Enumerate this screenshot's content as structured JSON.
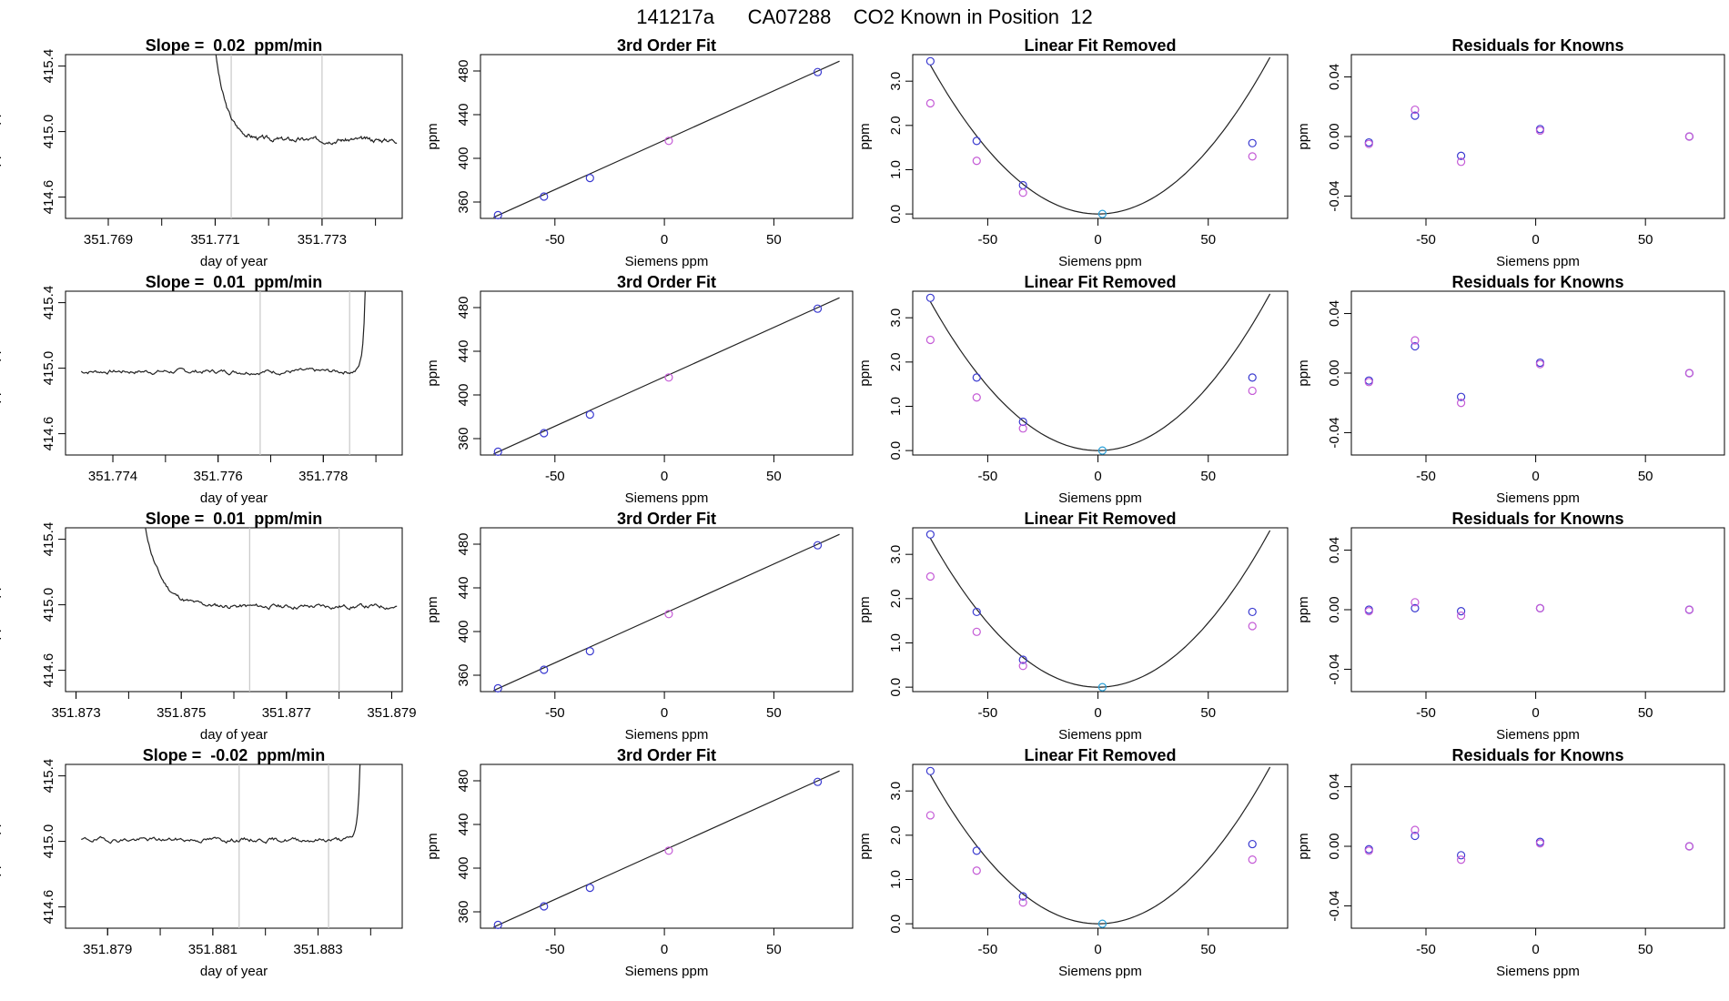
{
  "page_title": "141217a      CA07288    CO2 Known in Position  12",
  "colors": {
    "magenta": "#c45ad6",
    "blue": "#3a3ad0",
    "cyan": "#2aa0d8",
    "vline": "#c8c8c8",
    "line": "#222222"
  },
  "chart_data": [
    {
      "type": "line",
      "title": "Slope =  0.02  ppm/min",
      "xlabel": "day of year",
      "ylabel": "approx. ppm",
      "xlim": [
        351.7682,
        351.7745
      ],
      "ylim": [
        414.47,
        415.47
      ],
      "xticks": [
        "351.769",
        "351.771",
        "351.773"
      ],
      "yticks": [
        "414.6",
        "415.0",
        "415.4"
      ],
      "vlines": [
        351.7713,
        351.773
      ],
      "series": [
        {
          "x_start": 351.771,
          "x_end": 351.7744,
          "baseline": 414.95,
          "start_index": 13,
          "transient": "decay",
          "transient_from": 415.5,
          "noise": 0.012,
          "seed": 3
        }
      ]
    },
    {
      "type": "line",
      "title": "Slope =  0.01  ppm/min",
      "xlabel": "day of year",
      "ylabel": "approx. ppm",
      "xlim": [
        351.7731,
        351.7795
      ],
      "ylim": [
        414.47,
        415.47
      ],
      "xticks": [
        "351.774",
        "351.776",
        "351.778"
      ],
      "yticks": [
        "414.6",
        "415.0",
        "415.4"
      ],
      "vlines": [
        351.7768,
        351.7785
      ],
      "series": [
        {
          "x_start": 351.7734,
          "x_end": 351.7788,
          "baseline": 414.98,
          "start_index": 0,
          "transient": "rise",
          "transient_to": 415.5,
          "noise": 0.012,
          "seed": 7
        }
      ]
    },
    {
      "type": "line",
      "title": "Slope =  0.01  ppm/min",
      "xlabel": "day of year",
      "ylabel": "approx. ppm",
      "xlim": [
        351.8728,
        351.8792
      ],
      "ylim": [
        414.47,
        415.47
      ],
      "xticks": [
        "351.873",
        "351.875",
        "351.877",
        "351.879"
      ],
      "yticks": [
        "414.6",
        "415.0",
        "415.4"
      ],
      "vlines": [
        351.8763,
        351.878
      ],
      "series": [
        {
          "x_start": 351.8743,
          "x_end": 351.8791,
          "baseline": 414.99,
          "start_index": 8,
          "transient": "decay",
          "transient_from": 415.5,
          "noise": 0.012,
          "seed": 11
        }
      ]
    },
    {
      "type": "line",
      "title": "Slope =  -0.02  ppm/min",
      "xlabel": "day of year",
      "ylabel": "approx. ppm",
      "xlim": [
        351.8782,
        351.8846
      ],
      "ylim": [
        414.47,
        415.47
      ],
      "xticks": [
        "351.879",
        "351.881",
        "351.883"
      ],
      "yticks": [
        "414.6",
        "415.0",
        "415.4"
      ],
      "vlines": [
        351.8815,
        351.8832
      ],
      "series": [
        {
          "x_start": 351.8785,
          "x_end": 351.8838,
          "baseline": 415.01,
          "start_index": 0,
          "transient": "rise",
          "transient_to": 415.5,
          "noise": 0.012,
          "seed": 19
        }
      ]
    },
    {
      "type": "scatter",
      "title": "3rd Order Fit",
      "xlabel": "Siemens ppm",
      "ylabel": "ppm",
      "xlim": [
        -84,
        86
      ],
      "ylim": [
        345,
        495
      ],
      "xticks": [
        -50,
        0,
        50
      ],
      "yticks": [
        360,
        400,
        440,
        480
      ],
      "points": [
        {
          "x": -76,
          "y": 348,
          "color": "blue"
        },
        {
          "x": -55,
          "y": 365,
          "color": "blue"
        },
        {
          "x": -34,
          "y": 382,
          "color": "blue"
        },
        {
          "x": 2,
          "y": 416,
          "color": "magenta"
        },
        {
          "x": 70,
          "y": 479,
          "color": "blue"
        }
      ],
      "fit": {
        "x0": -78,
        "y0": 346,
        "x1": 80,
        "y1": 489
      }
    },
    {
      "type": "scatter",
      "title": "3rd Order Fit",
      "xlabel": "Siemens ppm",
      "ylabel": "ppm",
      "xlim": [
        -84,
        86
      ],
      "ylim": [
        345,
        495
      ],
      "xticks": [
        -50,
        0,
        50
      ],
      "yticks": [
        360,
        400,
        440,
        480
      ],
      "points": [
        {
          "x": -76,
          "y": 348,
          "color": "blue"
        },
        {
          "x": -55,
          "y": 365,
          "color": "blue"
        },
        {
          "x": -34,
          "y": 382,
          "color": "blue"
        },
        {
          "x": 2,
          "y": 416,
          "color": "magenta"
        },
        {
          "x": 70,
          "y": 479,
          "color": "blue"
        }
      ],
      "fit": {
        "x0": -78,
        "y0": 346,
        "x1": 80,
        "y1": 489
      }
    },
    {
      "type": "scatter",
      "title": "3rd Order Fit",
      "xlabel": "Siemens ppm",
      "ylabel": "ppm",
      "xlim": [
        -84,
        86
      ],
      "ylim": [
        345,
        495
      ],
      "xticks": [
        -50,
        0,
        50
      ],
      "yticks": [
        360,
        400,
        440,
        480
      ],
      "points": [
        {
          "x": -76,
          "y": 348,
          "color": "blue"
        },
        {
          "x": -55,
          "y": 365,
          "color": "blue"
        },
        {
          "x": -34,
          "y": 382,
          "color": "blue"
        },
        {
          "x": 2,
          "y": 416,
          "color": "magenta"
        },
        {
          "x": 70,
          "y": 479,
          "color": "blue"
        }
      ],
      "fit": {
        "x0": -78,
        "y0": 346,
        "x1": 80,
        "y1": 489
      }
    },
    {
      "type": "scatter",
      "title": "3rd Order Fit",
      "xlabel": "Siemens ppm",
      "ylabel": "ppm",
      "xlim": [
        -84,
        86
      ],
      "ylim": [
        345,
        495
      ],
      "xticks": [
        -50,
        0,
        50
      ],
      "yticks": [
        360,
        400,
        440,
        480
      ],
      "points": [
        {
          "x": -76,
          "y": 348,
          "color": "blue"
        },
        {
          "x": -55,
          "y": 365,
          "color": "blue"
        },
        {
          "x": -34,
          "y": 382,
          "color": "blue"
        },
        {
          "x": 2,
          "y": 416,
          "color": "magenta"
        },
        {
          "x": 70,
          "y": 479,
          "color": "blue"
        }
      ],
      "fit": {
        "x0": -78,
        "y0": 346,
        "x1": 80,
        "y1": 489
      }
    },
    {
      "type": "scatter",
      "title": "Linear Fit Removed",
      "xlabel": "Siemens ppm",
      "ylabel": "ppm",
      "xlim": [
        -84,
        86
      ],
      "ylim": [
        -0.1,
        3.6
      ],
      "xticks": [
        -50,
        0,
        50
      ],
      "yticks": [
        "0.0",
        "1.0",
        "2.0",
        "3.0"
      ],
      "points": [
        {
          "x": -76,
          "y": 3.45,
          "color": "blue"
        },
        {
          "x": -76,
          "y": 2.5,
          "color": "magenta"
        },
        {
          "x": -55,
          "y": 1.65,
          "color": "blue"
        },
        {
          "x": -55,
          "y": 1.2,
          "color": "magenta"
        },
        {
          "x": -34,
          "y": 0.65,
          "color": "blue"
        },
        {
          "x": -34,
          "y": 0.48,
          "color": "magenta"
        },
        {
          "x": 2,
          "y": 0.0,
          "color": "cyan"
        },
        {
          "x": 70,
          "y": 1.6,
          "color": "blue"
        },
        {
          "x": 70,
          "y": 1.3,
          "color": "magenta"
        }
      ],
      "curve": {
        "vertex_x": 0,
        "a": 0.000582,
        "x_from": -76,
        "x_to": 78
      }
    },
    {
      "type": "scatter",
      "title": "Linear Fit Removed",
      "xlabel": "Siemens ppm",
      "ylabel": "ppm",
      "xlim": [
        -84,
        86
      ],
      "ylim": [
        -0.1,
        3.6
      ],
      "xticks": [
        -50,
        0,
        50
      ],
      "yticks": [
        "0.0",
        "1.0",
        "2.0",
        "3.0"
      ],
      "points": [
        {
          "x": -76,
          "y": 3.45,
          "color": "blue"
        },
        {
          "x": -76,
          "y": 2.5,
          "color": "magenta"
        },
        {
          "x": -55,
          "y": 1.65,
          "color": "blue"
        },
        {
          "x": -55,
          "y": 1.2,
          "color": "magenta"
        },
        {
          "x": -34,
          "y": 0.65,
          "color": "blue"
        },
        {
          "x": -34,
          "y": 0.5,
          "color": "magenta"
        },
        {
          "x": 2,
          "y": 0.0,
          "color": "cyan"
        },
        {
          "x": 70,
          "y": 1.65,
          "color": "blue"
        },
        {
          "x": 70,
          "y": 1.35,
          "color": "magenta"
        }
      ],
      "curve": {
        "vertex_x": 0,
        "a": 0.000582,
        "x_from": -76,
        "x_to": 78
      }
    },
    {
      "type": "scatter",
      "title": "Linear Fit Removed",
      "xlabel": "Siemens ppm",
      "ylabel": "ppm",
      "xlim": [
        -84,
        86
      ],
      "ylim": [
        -0.1,
        3.6
      ],
      "xticks": [
        -50,
        0,
        50
      ],
      "yticks": [
        "0.0",
        "1.0",
        "2.0",
        "3.0"
      ],
      "points": [
        {
          "x": -76,
          "y": 3.45,
          "color": "blue"
        },
        {
          "x": -76,
          "y": 2.5,
          "color": "magenta"
        },
        {
          "x": -55,
          "y": 1.7,
          "color": "blue"
        },
        {
          "x": -55,
          "y": 1.25,
          "color": "magenta"
        },
        {
          "x": -34,
          "y": 0.62,
          "color": "blue"
        },
        {
          "x": -34,
          "y": 0.48,
          "color": "magenta"
        },
        {
          "x": 2,
          "y": 0.0,
          "color": "cyan"
        },
        {
          "x": 70,
          "y": 1.7,
          "color": "blue"
        },
        {
          "x": 70,
          "y": 1.38,
          "color": "magenta"
        }
      ],
      "curve": {
        "vertex_x": 0,
        "a": 0.000582,
        "x_from": -76,
        "x_to": 78
      }
    },
    {
      "type": "scatter",
      "title": "Linear Fit Removed",
      "xlabel": "Siemens ppm",
      "ylabel": "ppm",
      "xlim": [
        -84,
        86
      ],
      "ylim": [
        -0.1,
        3.6
      ],
      "xticks": [
        -50,
        0,
        50
      ],
      "yticks": [
        "0.0",
        "1.0",
        "2.0",
        "3.0"
      ],
      "points": [
        {
          "x": -76,
          "y": 3.45,
          "color": "blue"
        },
        {
          "x": -76,
          "y": 2.45,
          "color": "magenta"
        },
        {
          "x": -55,
          "y": 1.65,
          "color": "blue"
        },
        {
          "x": -55,
          "y": 1.2,
          "color": "magenta"
        },
        {
          "x": -34,
          "y": 0.62,
          "color": "blue"
        },
        {
          "x": -34,
          "y": 0.48,
          "color": "magenta"
        },
        {
          "x": 2,
          "y": 0.0,
          "color": "cyan"
        },
        {
          "x": 70,
          "y": 1.8,
          "color": "blue"
        },
        {
          "x": 70,
          "y": 1.45,
          "color": "magenta"
        }
      ],
      "curve": {
        "vertex_x": 0,
        "a": 0.000582,
        "x_from": -76,
        "x_to": 78
      }
    },
    {
      "type": "scatter",
      "title": "Residuals for Knowns",
      "xlabel": "Siemens ppm",
      "ylabel": "ppm",
      "xlim": [
        -84,
        86
      ],
      "ylim": [
        -0.055,
        0.055
      ],
      "xticks": [
        -50,
        0,
        50
      ],
      "yticks": [
        "-0.04",
        "0.00",
        "0.04"
      ],
      "points": [
        {
          "x": -76,
          "y": -0.004,
          "color": "blue"
        },
        {
          "x": -76,
          "y": -0.005,
          "color": "magenta"
        },
        {
          "x": -55,
          "y": 0.014,
          "color": "blue"
        },
        {
          "x": -55,
          "y": 0.018,
          "color": "magenta"
        },
        {
          "x": -34,
          "y": -0.013,
          "color": "blue"
        },
        {
          "x": -34,
          "y": -0.017,
          "color": "magenta"
        },
        {
          "x": 2,
          "y": 0.005,
          "color": "blue"
        },
        {
          "x": 2,
          "y": 0.004,
          "color": "magenta"
        },
        {
          "x": 70,
          "y": 0.0,
          "color": "blue"
        },
        {
          "x": 70,
          "y": 0.0,
          "color": "magenta"
        }
      ]
    },
    {
      "type": "scatter",
      "title": "Residuals for Knowns",
      "xlabel": "Siemens ppm",
      "ylabel": "ppm",
      "xlim": [
        -84,
        86
      ],
      "ylim": [
        -0.055,
        0.055
      ],
      "xticks": [
        -50,
        0,
        50
      ],
      "yticks": [
        "-0.04",
        "0.00",
        "0.04"
      ],
      "points": [
        {
          "x": -76,
          "y": -0.005,
          "color": "blue"
        },
        {
          "x": -76,
          "y": -0.006,
          "color": "magenta"
        },
        {
          "x": -55,
          "y": 0.018,
          "color": "blue"
        },
        {
          "x": -55,
          "y": 0.022,
          "color": "magenta"
        },
        {
          "x": -34,
          "y": -0.016,
          "color": "blue"
        },
        {
          "x": -34,
          "y": -0.02,
          "color": "magenta"
        },
        {
          "x": 2,
          "y": 0.007,
          "color": "blue"
        },
        {
          "x": 2,
          "y": 0.006,
          "color": "magenta"
        },
        {
          "x": 70,
          "y": 0.0,
          "color": "blue"
        },
        {
          "x": 70,
          "y": 0.0,
          "color": "magenta"
        }
      ]
    },
    {
      "type": "scatter",
      "title": "Residuals for Knowns",
      "xlabel": "Siemens ppm",
      "ylabel": "ppm",
      "xlim": [
        -84,
        86
      ],
      "ylim": [
        -0.055,
        0.055
      ],
      "xticks": [
        -50,
        0,
        50
      ],
      "yticks": [
        "-0.04",
        "0.00",
        "0.04"
      ],
      "points": [
        {
          "x": -76,
          "y": 0.0,
          "color": "blue"
        },
        {
          "x": -76,
          "y": -0.001,
          "color": "magenta"
        },
        {
          "x": -55,
          "y": 0.001,
          "color": "blue"
        },
        {
          "x": -55,
          "y": 0.005,
          "color": "magenta"
        },
        {
          "x": -34,
          "y": -0.001,
          "color": "blue"
        },
        {
          "x": -34,
          "y": -0.004,
          "color": "magenta"
        },
        {
          "x": 2,
          "y": 0.001,
          "color": "blue"
        },
        {
          "x": 2,
          "y": 0.001,
          "color": "magenta"
        },
        {
          "x": 70,
          "y": 0.0,
          "color": "blue"
        },
        {
          "x": 70,
          "y": 0.0,
          "color": "magenta"
        }
      ]
    },
    {
      "type": "scatter",
      "title": "Residuals for Knowns",
      "xlabel": "Siemens ppm",
      "ylabel": "ppm",
      "xlim": [
        -84,
        86
      ],
      "ylim": [
        -0.055,
        0.055
      ],
      "xticks": [
        -50,
        0,
        50
      ],
      "yticks": [
        "-0.04",
        "0.00",
        "0.04"
      ],
      "points": [
        {
          "x": -76,
          "y": -0.002,
          "color": "blue"
        },
        {
          "x": -76,
          "y": -0.003,
          "color": "magenta"
        },
        {
          "x": -55,
          "y": 0.007,
          "color": "blue"
        },
        {
          "x": -55,
          "y": 0.011,
          "color": "magenta"
        },
        {
          "x": -34,
          "y": -0.006,
          "color": "blue"
        },
        {
          "x": -34,
          "y": -0.009,
          "color": "magenta"
        },
        {
          "x": 2,
          "y": 0.003,
          "color": "blue"
        },
        {
          "x": 2,
          "y": 0.002,
          "color": "magenta"
        },
        {
          "x": 70,
          "y": 0.0,
          "color": "blue"
        },
        {
          "x": 70,
          "y": 0.0,
          "color": "magenta"
        }
      ]
    }
  ]
}
